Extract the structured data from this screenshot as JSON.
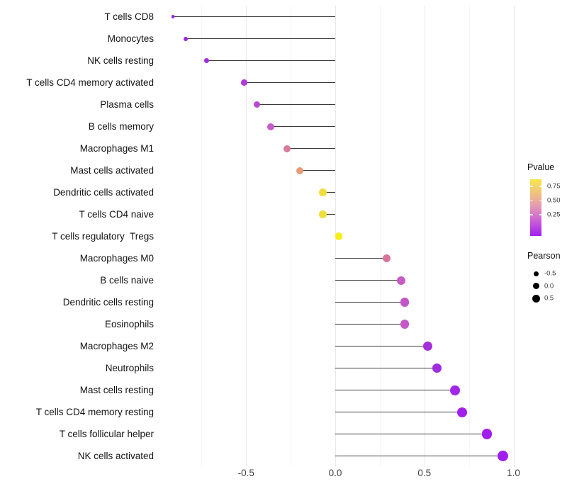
{
  "chart_data": {
    "type": "scatter",
    "subtype": "horizontal-lollipop",
    "title": "",
    "xlabel": "",
    "ylabel": "",
    "background": "#ffffff",
    "grid": {
      "major_color": "#e9e9e9",
      "minor_color": "#f6f6f6",
      "major_values": [
        -0.5,
        0.0,
        0.5,
        1.0
      ],
      "minor_values": [
        -0.75,
        -0.25,
        0.25,
        0.75
      ]
    },
    "stem_color": "#3c3c3c",
    "xlim": [
      -0.95,
      1.06
    ],
    "x_ticks": [
      {
        "label": "-0.5",
        "value": -0.5
      },
      {
        "label": "0.0",
        "value": 0.0
      },
      {
        "label": "0.5",
        "value": 0.5
      },
      {
        "label": "1.0",
        "value": 1.0
      }
    ],
    "rows": [
      {
        "label": "T cells CD8",
        "pearson": -0.91,
        "dot_color": "#9B20E4",
        "dot_d": 4.5
      },
      {
        "label": "Monocytes",
        "pearson": -0.84,
        "dot_color": "#A124E6",
        "dot_d": 6
      },
      {
        "label": "NK cells resting",
        "pearson": -0.72,
        "dot_color": "#A62BE0",
        "dot_d": 7
      },
      {
        "label": "T cells CD4 memory activated",
        "pearson": -0.51,
        "dot_color": "#AE3AD8",
        "dot_d": 8.5
      },
      {
        "label": "Plasma cells",
        "pearson": -0.44,
        "dot_color": "#B848D3",
        "dot_d": 9
      },
      {
        "label": "B cells memory",
        "pearson": -0.36,
        "dot_color": "#C75BC8",
        "dot_d": 10
      },
      {
        "label": "Macrophages M1",
        "pearson": -0.27,
        "dot_color": "#D87A9B",
        "dot_d": 10
      },
      {
        "label": "Mast cells activated",
        "pearson": -0.2,
        "dot_color": "#E89B77",
        "dot_d": 10
      },
      {
        "label": "Dendritic cells activated",
        "pearson": -0.07,
        "dot_color": "#F2DD3F",
        "dot_d": 10.5
      },
      {
        "label": "T cells CD4 naive",
        "pearson": -0.07,
        "dot_color": "#F2DE3C",
        "dot_d": 10.5
      },
      {
        "label": "T cells regulatory  Tregs",
        "pearson": 0.02,
        "dot_color": "#F9EE16",
        "dot_d": 10.5
      },
      {
        "label": "Macrophages M0",
        "pearson": 0.29,
        "dot_color": "#D9739B",
        "dot_d": 11
      },
      {
        "label": "B cells naive",
        "pearson": 0.37,
        "dot_color": "#C75BC2",
        "dot_d": 12
      },
      {
        "label": "Dendritic cells resting",
        "pearson": 0.39,
        "dot_color": "#C355CA",
        "dot_d": 12.5
      },
      {
        "label": "Eosinophils",
        "pearson": 0.39,
        "dot_color": "#C458C7",
        "dot_d": 12.5
      },
      {
        "label": "Macrophages M2",
        "pearson": 0.52,
        "dot_color": "#A52FD9",
        "dot_d": 13
      },
      {
        "label": "Neutrophils",
        "pearson": 0.57,
        "dot_color": "#A02BE1",
        "dot_d": 13.5
      },
      {
        "label": "Mast cells resting",
        "pearson": 0.67,
        "dot_color": "#A026EA",
        "dot_d": 14
      },
      {
        "label": "T cells CD4 memory resting",
        "pearson": 0.71,
        "dot_color": "#A121EC",
        "dot_d": 14
      },
      {
        "label": "T cells follicular helper",
        "pearson": 0.85,
        "dot_color": "#A01FEE",
        "dot_d": 14.5
      },
      {
        "label": "NK cells activated",
        "pearson": 0.94,
        "dot_color": "#A01EF0",
        "dot_d": 15.5
      }
    ],
    "legend": {
      "pvalue": {
        "title": "Pvalue",
        "gradient_bottom_to_top": [
          "#A020F0",
          "#CB63D3",
          "#E294B8",
          "#EFB98C",
          "#F8E74B"
        ],
        "ticks": [
          {
            "label": "0.75",
            "frac_from_top": 0.125
          },
          {
            "label": "0.50",
            "frac_from_top": 0.381
          },
          {
            "label": "0.25",
            "frac_from_top": 0.625
          }
        ]
      },
      "pearson": {
        "title": "Pearson",
        "entries": [
          {
            "label": "-0.5",
            "dot_d": 7
          },
          {
            "label": "0.0",
            "dot_d": 9
          },
          {
            "label": "0.5",
            "dot_d": 11
          }
        ]
      }
    }
  }
}
